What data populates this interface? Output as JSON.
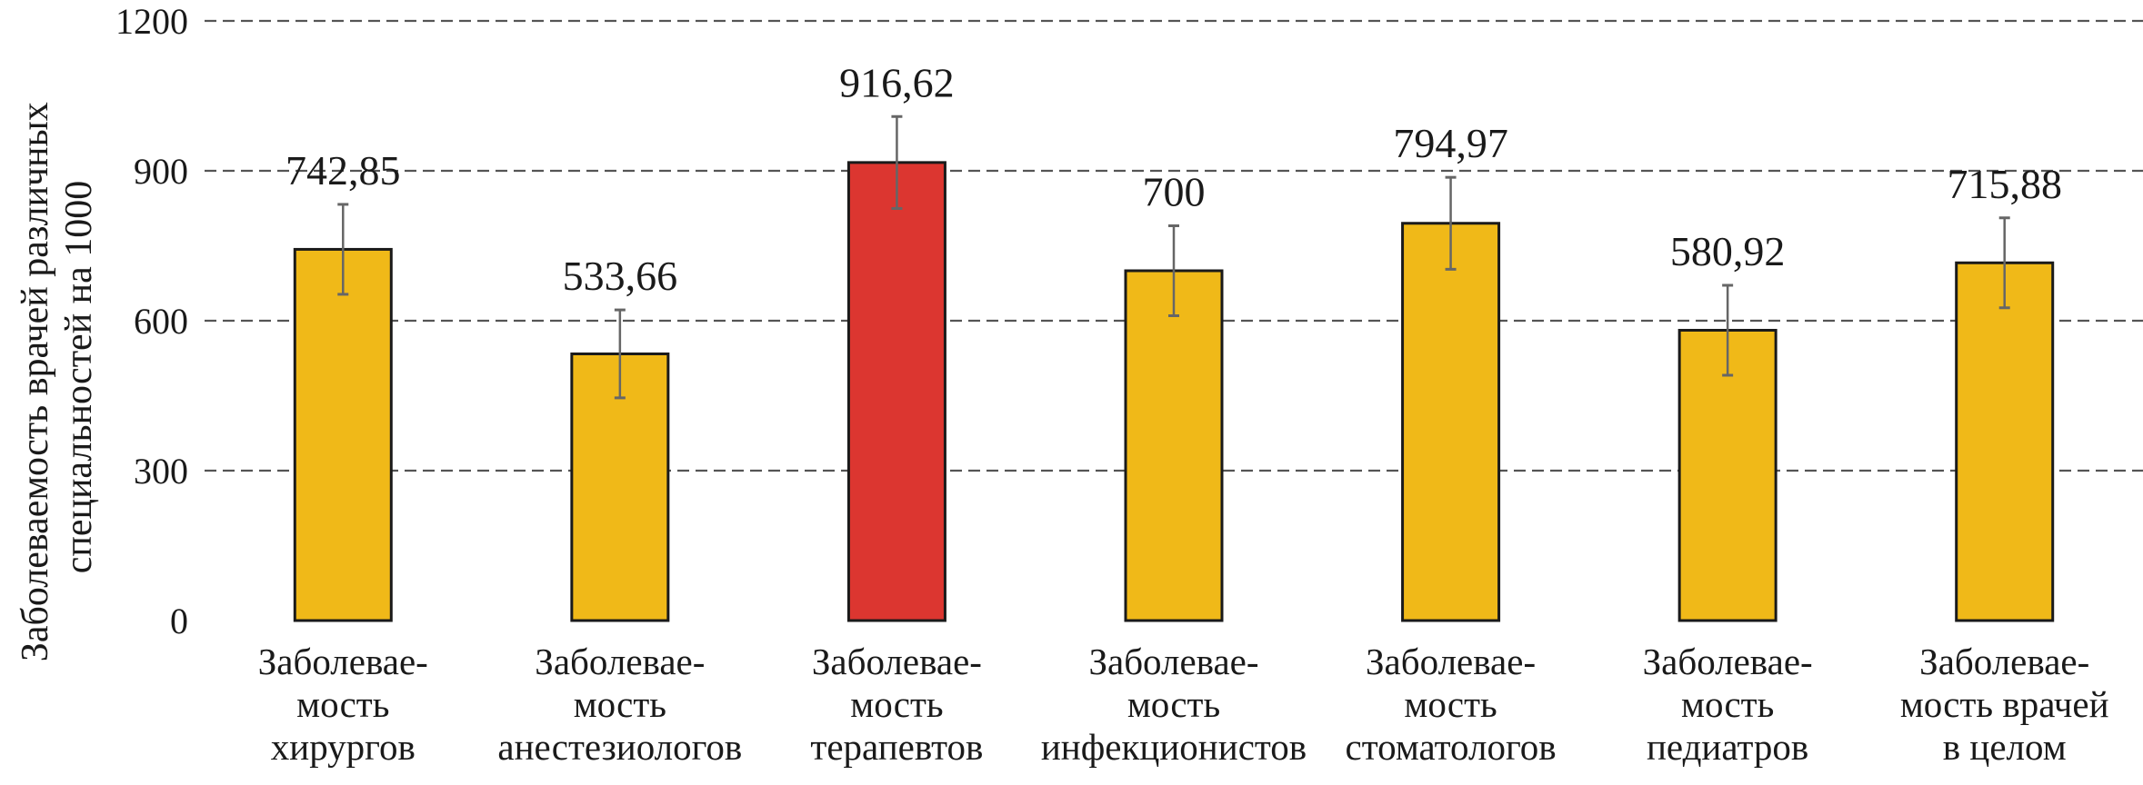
{
  "chart_data": {
    "type": "bar",
    "title": "",
    "xlabel": "",
    "ylabel": [
      "Заболеваемость врачей различных",
      "специальностей на 1000"
    ],
    "ylim": [
      0,
      1200
    ],
    "yticks": [
      0,
      300,
      600,
      900,
      1200
    ],
    "ytick_labels": [
      "0",
      "300",
      "600",
      "900",
      "1200"
    ],
    "grid": true,
    "categories": [
      [
        "Заболевае-",
        "мость",
        "хирургов"
      ],
      [
        "Заболевае-",
        "мость",
        "анестезиологов"
      ],
      [
        "Заболевае-",
        "мость",
        "терапевтов"
      ],
      [
        "Заболевае-",
        "мость",
        "инфекционистов"
      ],
      [
        "Заболевае-",
        "мость",
        "стоматологов"
      ],
      [
        "Заболевае-",
        "мость",
        "педиатров"
      ],
      [
        "Заболевае-",
        "мость врачей",
        "в целом"
      ]
    ],
    "values": [
      742.85,
      533.66,
      916.62,
      700,
      794.97,
      580.92,
      715.88
    ],
    "value_labels": [
      "742,85",
      "533,66",
      "916,62",
      "700",
      "794,97",
      "580,92",
      "715,88"
    ],
    "error": [
      90,
      88,
      92,
      90,
      92,
      90,
      90
    ],
    "colors": [
      "#f0b918",
      "#f0b918",
      "#dc3630",
      "#f0b918",
      "#f0b918",
      "#f0b918",
      "#f0b918"
    ],
    "gridline_color": "#555555",
    "bar_outline_color": "#1a1a1a",
    "errorbar_color": "#666666"
  }
}
